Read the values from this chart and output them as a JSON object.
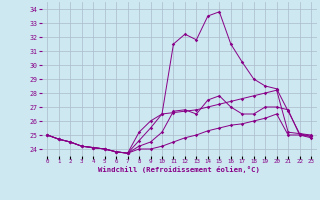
{
  "xlabel": "Windchill (Refroidissement éolien,°C)",
  "background_color": "#cde8f0",
  "line_color": "#880088",
  "grid_color": "#aabbcc",
  "x_hours": [
    0,
    1,
    2,
    3,
    4,
    5,
    6,
    7,
    8,
    9,
    10,
    11,
    12,
    13,
    14,
    15,
    16,
    17,
    18,
    19,
    20,
    21,
    22,
    23
  ],
  "series": {
    "windchill_max": [
      25.0,
      24.7,
      24.5,
      24.2,
      24.1,
      24.0,
      23.8,
      23.7,
      24.6,
      25.5,
      26.5,
      31.5,
      32.2,
      31.8,
      33.5,
      33.8,
      31.5,
      30.2,
      29.0,
      28.5,
      28.3,
      26.7,
      25.1,
      25.0
    ],
    "windchill_avg": [
      25.0,
      24.7,
      24.5,
      24.2,
      24.1,
      24.0,
      23.8,
      23.7,
      24.2,
      24.5,
      25.2,
      26.7,
      26.8,
      26.5,
      27.5,
      27.8,
      27.0,
      26.5,
      26.5,
      27.0,
      27.0,
      26.8,
      25.0,
      24.9
    ],
    "windchill_feel": [
      25.0,
      24.7,
      24.5,
      24.2,
      24.1,
      24.0,
      23.8,
      23.7,
      25.2,
      26.0,
      26.5,
      26.6,
      26.7,
      26.8,
      27.0,
      27.2,
      27.4,
      27.6,
      27.8,
      28.0,
      28.2,
      25.2,
      25.1,
      24.9
    ],
    "windchill_min": [
      25.0,
      24.7,
      24.5,
      24.2,
      24.1,
      24.0,
      23.8,
      23.7,
      24.0,
      24.0,
      24.2,
      24.5,
      24.8,
      25.0,
      25.3,
      25.5,
      25.7,
      25.8,
      26.0,
      26.2,
      26.5,
      25.0,
      25.0,
      24.8
    ]
  },
  "ylim": [
    23.5,
    34.5
  ],
  "yticks": [
    24,
    25,
    26,
    27,
    28,
    29,
    30,
    31,
    32,
    33,
    34
  ],
  "xlim": [
    -0.5,
    23.5
  ]
}
